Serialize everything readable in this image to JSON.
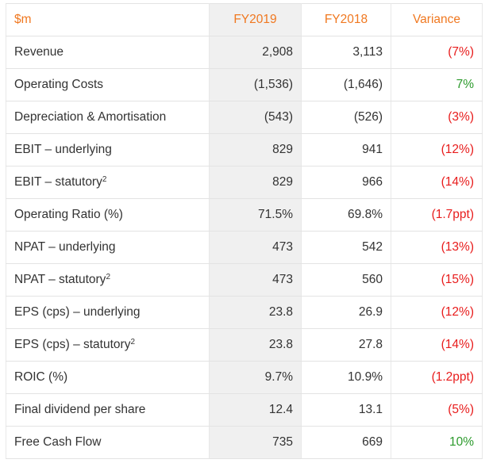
{
  "table": {
    "header": {
      "label": "$m",
      "fy2019": "FY2019",
      "fy2018": "FY2018",
      "variance": "Variance"
    },
    "colors": {
      "header_text": "#f07820",
      "negative_variance": "#e81c1c",
      "positive_variance": "#2c9a2c",
      "fy2019_column_bg": "#f0f0f0"
    },
    "rows": [
      {
        "label": "Revenue",
        "sup": "",
        "fy2019": "2,908",
        "fy2018": "3,113",
        "variance": "(7%)",
        "trend": "neg"
      },
      {
        "label": "Operating Costs",
        "sup": "",
        "fy2019": "(1,536)",
        "fy2018": "(1,646)",
        "variance": "7%",
        "trend": "pos"
      },
      {
        "label": "Depreciation & Amortisation",
        "sup": "",
        "fy2019": "(543)",
        "fy2018": "(526)",
        "variance": "(3%)",
        "trend": "neg"
      },
      {
        "label": "EBIT – underlying",
        "sup": "",
        "fy2019": "829",
        "fy2018": "941",
        "variance": "(12%)",
        "trend": "neg"
      },
      {
        "label": "EBIT – statutory",
        "sup": "2",
        "fy2019": "829",
        "fy2018": "966",
        "variance": "(14%)",
        "trend": "neg"
      },
      {
        "label": "Operating Ratio (%)",
        "sup": "",
        "fy2019": "71.5%",
        "fy2018": "69.8%",
        "variance": "(1.7ppt)",
        "trend": "neg"
      },
      {
        "label": "NPAT – underlying",
        "sup": "",
        "fy2019": "473",
        "fy2018": "542",
        "variance": "(13%)",
        "trend": "neg"
      },
      {
        "label": "NPAT – statutory",
        "sup": "2",
        "fy2019": "473",
        "fy2018": "560",
        "variance": "(15%)",
        "trend": "neg"
      },
      {
        "label": "EPS (cps) – underlying",
        "sup": "",
        "fy2019": "23.8",
        "fy2018": "26.9",
        "variance": "(12%)",
        "trend": "neg"
      },
      {
        "label": "EPS (cps) – statutory",
        "sup": "2",
        "fy2019": "23.8",
        "fy2018": "27.8",
        "variance": "(14%)",
        "trend": "neg"
      },
      {
        "label": "ROIC (%)",
        "sup": "",
        "fy2019": "9.7%",
        "fy2018": "10.9%",
        "variance": "(1.2ppt)",
        "trend": "neg"
      },
      {
        "label": "Final dividend per share",
        "sup": "",
        "fy2019": "12.4",
        "fy2018": "13.1",
        "variance": "(5%)",
        "trend": "neg"
      },
      {
        "label": "Free Cash Flow",
        "sup": "",
        "fy2019": "735",
        "fy2018": "669",
        "variance": "10%",
        "trend": "pos"
      }
    ]
  }
}
